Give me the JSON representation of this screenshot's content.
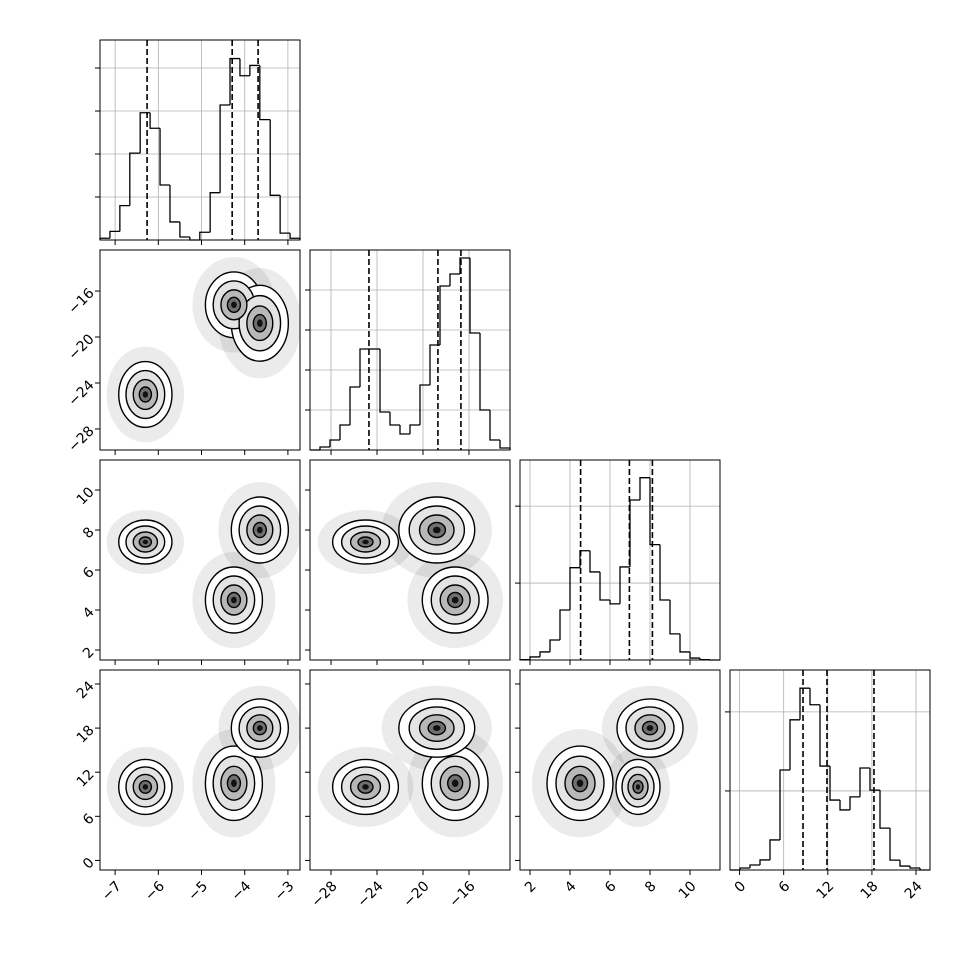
{
  "chart_data": {
    "type": "corner",
    "variables": [
      {
        "lim": [
          -7.35,
          -2.72
        ],
        "ticks": [
          {
            "value": -7,
            "label": "−7"
          },
          {
            "value": -6,
            "label": "−6"
          },
          {
            "value": -5,
            "label": "−5"
          },
          {
            "value": -4,
            "label": "−4"
          },
          {
            "value": -3,
            "label": "−3"
          }
        ]
      },
      {
        "lim": [
          -29.83,
          -12.43
        ],
        "ticks": [
          {
            "value": -28,
            "label": "−28"
          },
          {
            "value": -24,
            "label": "−24"
          },
          {
            "value": -20,
            "label": "−20"
          },
          {
            "value": -16,
            "label": "−16"
          }
        ]
      },
      {
        "lim": [
          1.5,
          11.5
        ],
        "ticks": [
          2,
          4,
          6,
          8,
          10
        ]
      },
      {
        "lim": [
          -1.3,
          25.9
        ],
        "ticks": [
          0,
          6,
          12,
          18,
          24
        ]
      }
    ],
    "histograms": [
      {
        "bins": [
          -7.35,
          -7.12,
          -6.89,
          -6.66,
          -6.42,
          -6.19,
          -5.96,
          -5.73,
          -5.5,
          -5.27,
          -5.04,
          -4.8,
          -4.57,
          -4.34,
          -4.11,
          -3.88,
          -3.65,
          -3.41,
          -3.18,
          -2.95,
          -2.72
        ],
        "values": [
          20,
          100,
          400,
          1010,
          1480,
          1300,
          640,
          210,
          35,
          0,
          90,
          550,
          1570,
          2110,
          1910,
          2030,
          1400,
          520,
          80,
          20
        ],
        "ylim": [
          0,
          2326
        ],
        "yticks": [
          500,
          1000,
          1500,
          2000
        ],
        "quantiles": [
          -6.26,
          -4.29,
          -3.69
        ]
      },
      {
        "bins": [
          -29.83,
          -28.96,
          -28.09,
          -27.22,
          -26.35,
          -25.48,
          -24.61,
          -23.74,
          -22.87,
          -22.0,
          -21.13,
          -20.26,
          -19.39,
          -18.52,
          -17.65,
          -16.78,
          -15.91,
          -15.04,
          -14.17,
          -13.3,
          -12.43
        ],
        "values": [
          0,
          3,
          10,
          25,
          63,
          101,
          101,
          38,
          25,
          16,
          25,
          65,
          105,
          164,
          176,
          192,
          117,
          40,
          10,
          2
        ],
        "ylim": [
          0,
          200
        ],
        "yticks": [
          40,
          80,
          120,
          160
        ],
        "quantiles": [
          -24.7,
          -18.7,
          -16.7
        ]
      },
      {
        "bins": [
          1.5,
          2,
          2.5,
          3,
          3.5,
          4,
          4.5,
          5,
          5.5,
          6,
          6.5,
          7,
          7.5,
          8,
          8.5,
          9,
          9.5,
          10,
          10.5,
          11,
          11.5
        ],
        "values": [
          5,
          40,
          105,
          260,
          650,
          1200,
          1420,
          1145,
          780,
          730,
          1210,
          2080,
          2370,
          1500,
          780,
          340,
          105,
          25,
          5,
          0
        ],
        "ylim": [
          0,
          2600
        ],
        "yticks": [
          1000,
          2000
        ],
        "quantiles": [
          4.53,
          6.97,
          8.12
        ]
      },
      {
        "bins": [
          -1.3,
          0.06,
          1.42,
          2.78,
          4.14,
          5.5,
          6.86,
          8.22,
          9.58,
          10.94,
          12.3,
          13.66,
          15.02,
          16.38,
          17.74,
          19.1,
          20.46,
          21.82,
          23.18,
          24.54,
          25.9
        ],
        "values": [
          0,
          25,
          63,
          127,
          380,
          1265,
          1900,
          2300,
          2090,
          1315,
          885,
          760,
          925,
          1290,
          1010,
          530,
          125,
          50,
          25,
          0
        ],
        "ylim": [
          0,
          2530
        ],
        "yticks": [
          1000,
          2000
        ],
        "quantiles": [
          8.63,
          11.89,
          18.28
        ]
      }
    ],
    "clusters": [
      {
        "center": [
          -6.3,
          -25,
          7.4,
          10
        ],
        "sd": [
          0.28,
          1.3,
          0.5,
          1.7
        ]
      },
      {
        "center": [
          -4.25,
          -17.2,
          4.5,
          10.5
        ],
        "sd": [
          0.3,
          1.3,
          0.75,
          2.3
        ]
      },
      {
        "center": [
          -3.65,
          -18.8,
          8,
          18
        ],
        "sd": [
          0.3,
          1.5,
          0.75,
          1.8
        ]
      }
    ]
  }
}
